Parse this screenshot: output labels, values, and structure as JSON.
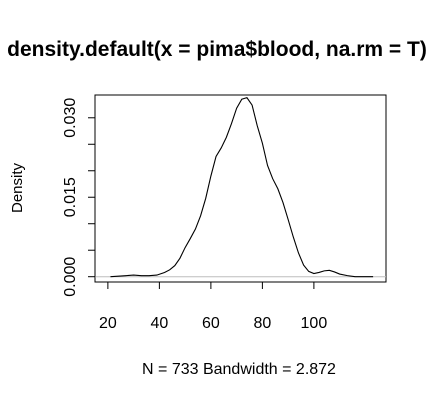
{
  "chart_data": {
    "type": "line",
    "title": "density.default(x = pima$blood, na.rm = T)",
    "xlabel": "N = 733   Bandwidth = 2.872",
    "ylabel": "Density",
    "xlim": [
      15,
      128
    ],
    "ylim": [
      -0.001,
      0.0343
    ],
    "x_ticks": [
      20,
      40,
      60,
      80,
      100
    ],
    "x_tick_labels": [
      "20",
      "40",
      "60",
      "80",
      "100"
    ],
    "y_ticks": [
      0.0,
      0.005,
      0.01,
      0.015,
      0.02,
      0.025,
      0.03
    ],
    "y_tick_labels": [
      "0.000",
      "0.015",
      "0.030"
    ],
    "y_labeled_ticks": [
      0.0,
      0.015,
      0.03
    ],
    "grid": false,
    "zero_line": true,
    "series": [
      {
        "x": [
          21,
          24,
          27,
          30,
          33,
          36,
          39,
          42,
          44,
          46,
          48,
          50,
          52,
          54,
          56,
          58,
          60,
          62,
          64,
          66,
          68,
          70,
          72,
          74,
          76,
          78,
          80,
          82,
          84,
          86,
          88,
          90,
          92,
          94,
          96,
          98,
          100,
          102,
          104,
          106,
          108,
          110,
          113,
          116,
          120,
          123
        ],
        "y": [
          0.0,
          0.0001,
          0.0002,
          0.0003,
          0.0002,
          0.0002,
          0.0003,
          0.0008,
          0.0013,
          0.0021,
          0.0035,
          0.0055,
          0.0072,
          0.009,
          0.0115,
          0.0148,
          0.019,
          0.0227,
          0.0243,
          0.0263,
          0.0289,
          0.0318,
          0.0335,
          0.0338,
          0.0324,
          0.0285,
          0.0252,
          0.021,
          0.0185,
          0.0166,
          0.014,
          0.0108,
          0.0075,
          0.0045,
          0.0022,
          0.001,
          0.0006,
          0.0008,
          0.0011,
          0.0012,
          0.0009,
          0.0005,
          0.0002,
          0.0,
          0.0,
          0.0
        ]
      }
    ]
  }
}
